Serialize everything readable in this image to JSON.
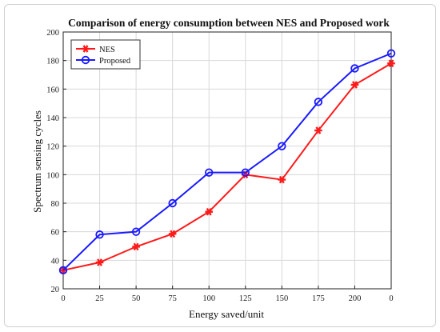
{
  "chart_data": {
    "type": "line",
    "title": "Comparison of energy consumption between NES and Proposed work",
    "xlabel": "Energy saved/unit",
    "ylabel": "Spectrum sensing cycles",
    "categories": [
      "0",
      "25",
      "50",
      "75",
      "100",
      "125",
      "150",
      "175",
      "200",
      "0"
    ],
    "ylim": [
      20,
      200
    ],
    "yticks": [
      20,
      40,
      60,
      80,
      100,
      120,
      140,
      160,
      180,
      200
    ],
    "grid": true,
    "legend_position": "top-left",
    "series": [
      {
        "name": "NES",
        "color": "#ff1a1a",
        "marker": "asterisk",
        "values": [
          33,
          38.5,
          49.5,
          58.5,
          74,
          100,
          96.5,
          131,
          163,
          178
        ]
      },
      {
        "name": "Proposed",
        "color": "#1a1aff",
        "marker": "circle",
        "values": [
          33,
          58,
          60,
          80,
          101.5,
          101.5,
          120,
          151,
          174.5,
          185
        ]
      }
    ]
  }
}
